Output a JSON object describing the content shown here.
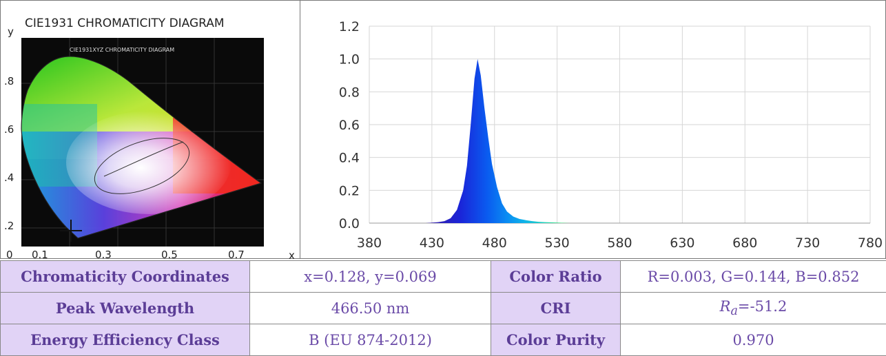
{
  "cie": {
    "title": "CIE1931 CHROMATICITY DIAGRAM",
    "inner_title": "CIE1931XYZ CHROMATICITY DIAGRAM",
    "y_axis_label": "y",
    "x_axis_label": "x",
    "y_ticks": [
      ".8",
      ".6",
      ".4",
      ".2"
    ],
    "x_ticks": [
      "0",
      "0.1",
      "0.3",
      "0.5",
      "0.7"
    ],
    "point": {
      "x": 0.128,
      "y": 0.069
    }
  },
  "chart_data": {
    "type": "area",
    "x": [
      380,
      425,
      435,
      440,
      445,
      450,
      455,
      458,
      461,
      464,
      466.5,
      469,
      472,
      475,
      478,
      482,
      486,
      490,
      495,
      500,
      505,
      510,
      515,
      520,
      530,
      540,
      780
    ],
    "y": [
      0,
      0,
      0.006,
      0.012,
      0.03,
      0.08,
      0.2,
      0.35,
      0.6,
      0.88,
      1.0,
      0.9,
      0.7,
      0.52,
      0.36,
      0.22,
      0.12,
      0.07,
      0.04,
      0.025,
      0.018,
      0.012,
      0.008,
      0.006,
      0.003,
      0,
      0
    ],
    "xticks": [
      380,
      430,
      480,
      530,
      580,
      630,
      680,
      730,
      780
    ],
    "yticks": [
      "0.0",
      "0.2",
      "0.4",
      "0.6",
      "0.8",
      "1.0",
      "1.2"
    ],
    "xlim": [
      380,
      780
    ],
    "ylim": [
      0,
      1.2
    ],
    "grid": true
  },
  "colors": {
    "label_bg": "#e1d3f6",
    "label_text": "#5b3d96",
    "value_text": "#6a4aa7"
  },
  "table": {
    "r1": {
      "l1": "Chromaticity Coordinates",
      "v1": "x=0.128, y=0.069",
      "l2": "Color Ratio",
      "v2": "R=0.003, G=0.144, B=0.852"
    },
    "r2": {
      "l1": "Peak Wavelength",
      "v1": "466.50 nm",
      "l2": "CRI",
      "v2_prefix": "R",
      "v2_sub": "a",
      "v2_value": "=-51.2"
    },
    "r3": {
      "l1": "Energy Efficiency Class",
      "v1": "B (EU 874-2012)",
      "l2": "Color Purity",
      "v2": "0.970"
    }
  }
}
